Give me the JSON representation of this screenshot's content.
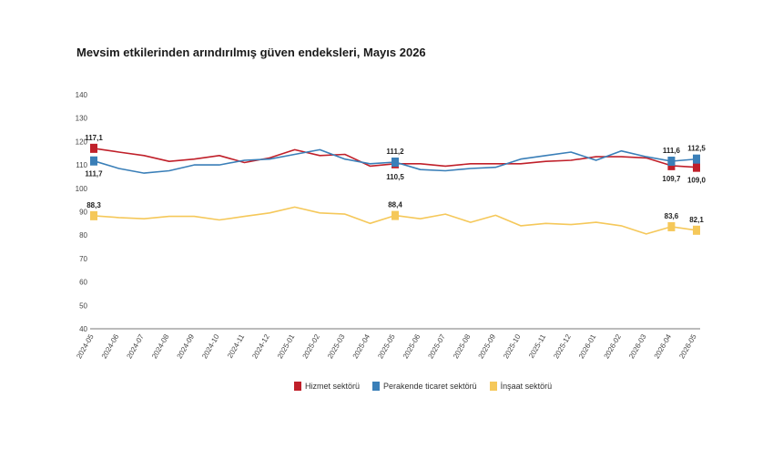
{
  "title": "Mevsim etkilerinden arındırılmış güven endeksleri, Mayıs 2026",
  "colors": {
    "hizmet": "#c0202a",
    "perakende": "#3a7fb8",
    "insaat": "#f5c85a"
  },
  "chart_data": {
    "type": "line",
    "title": "Mevsim etkilerinden arındırılmış güven endeksleri, Mayıs 2026",
    "ylim": [
      40,
      140
    ],
    "yticks": [
      40,
      50,
      60,
      70,
      80,
      90,
      100,
      110,
      120,
      130,
      140
    ],
    "categories": [
      "2024-05",
      "2024-06",
      "2024-07",
      "2024-08",
      "2024-09",
      "2024-10",
      "2024-11",
      "2024-12",
      "2025-01",
      "2025-02",
      "2025-03",
      "2025-04",
      "2025-05",
      "2025-06",
      "2025-07",
      "2025-08",
      "2025-09",
      "2025-10",
      "2025-11",
      "2025-12",
      "2026-01",
      "2026-02",
      "2026-03",
      "2026-04",
      "2026-05"
    ],
    "series": [
      {
        "name": "Hizmet sektörü",
        "color": "#c0202a",
        "values": [
          117.1,
          115.5,
          114.0,
          111.5,
          112.5,
          114.0,
          111.0,
          113.0,
          116.5,
          114.0,
          114.5,
          109.5,
          110.5,
          110.5,
          109.5,
          110.5,
          110.5,
          110.5,
          111.5,
          112.0,
          113.5,
          113.5,
          113.0,
          109.7,
          109.0
        ]
      },
      {
        "name": "Perakende ticaret sektörü",
        "color": "#3a7fb8",
        "values": [
          111.7,
          108.5,
          106.5,
          107.5,
          110.0,
          110.0,
          112.0,
          112.5,
          114.5,
          116.5,
          112.5,
          110.5,
          111.2,
          108.0,
          107.5,
          108.5,
          109.0,
          112.5,
          114.0,
          115.5,
          112.0,
          116.0,
          113.5,
          111.6,
          112.5
        ]
      },
      {
        "name": "İnşaat sektörü",
        "color": "#f5c85a",
        "values": [
          88.3,
          87.5,
          87.0,
          88.0,
          88.0,
          86.5,
          88.0,
          89.5,
          92.0,
          89.5,
          89.0,
          85.0,
          88.4,
          87.0,
          89.0,
          85.5,
          88.5,
          84.0,
          85.0,
          84.5,
          85.5,
          84.0,
          80.5,
          83.6,
          82.1
        ]
      }
    ],
    "labels": [
      {
        "series": 0,
        "index": 0,
        "text": "117,1",
        "pos": "above"
      },
      {
        "series": 1,
        "index": 0,
        "text": "111,7",
        "pos": "below"
      },
      {
        "series": 2,
        "index": 0,
        "text": "88,3",
        "pos": "above"
      },
      {
        "series": 1,
        "index": 12,
        "text": "111,2",
        "pos": "above"
      },
      {
        "series": 0,
        "index": 12,
        "text": "110,5",
        "pos": "below"
      },
      {
        "series": 2,
        "index": 12,
        "text": "88,4",
        "pos": "above"
      },
      {
        "series": 1,
        "index": 23,
        "text": "111,6",
        "pos": "above"
      },
      {
        "series": 0,
        "index": 23,
        "text": "109,7",
        "pos": "below"
      },
      {
        "series": 2,
        "index": 23,
        "text": "83,6",
        "pos": "above"
      },
      {
        "series": 1,
        "index": 24,
        "text": "112,5",
        "pos": "above"
      },
      {
        "series": 0,
        "index": 24,
        "text": "109,0",
        "pos": "below"
      },
      {
        "series": 2,
        "index": 24,
        "text": "82,1",
        "pos": "above"
      }
    ],
    "markers_at": [
      0,
      12,
      23,
      24
    ],
    "legend": [
      {
        "label": "Hizmet sektörü",
        "color": "#c0202a"
      },
      {
        "label": "Perakende ticaret sektörü",
        "color": "#3a7fb8"
      },
      {
        "label": "İnşaat sektörü",
        "color": "#f5c85a"
      }
    ],
    "legend_position": "bottom-center",
    "grid": false
  }
}
